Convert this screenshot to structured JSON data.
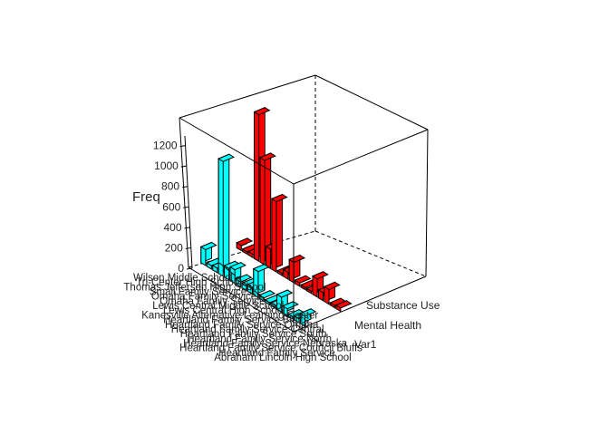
{
  "chart_data": {
    "type": "bar3d",
    "ylabel": "Freq",
    "y_ticks": [
      0,
      200,
      400,
      600,
      800,
      1000,
      1200
    ],
    "ylim": [
      0,
      1300
    ],
    "colors": {
      "Mental Health": "#00FFFF",
      "Substance Use": "#FF0000"
    },
    "var_labels": [
      "Substance Use",
      "Mental Health",
      "Var1"
    ],
    "categories": [
      "Abraham Lincoln High School",
      "Heartland Family Service",
      "Heartland Family Service Council Bluffs",
      "Heartland Family Service Nebraska",
      "Heartland Family Service North",
      "Heartland Family Service South",
      "Heartland Family Service Central",
      "Heartland Family Service Omaha",
      "Heartland Family Service Bluffs",
      "Kanesville Alternative Learning Center",
      "Lewis Central High School",
      "Lewis Central Middle School",
      "Omaha Family Service",
      "Omaha Family Services",
      "Small Family Services",
      "Thomas Jefferson High School",
      "Tri-Center High School",
      "Wilson Middle School"
    ],
    "series": [
      {
        "name": "Mental Health",
        "values": [
          140,
          30,
          40,
          1010,
          100,
          120,
          45,
          40,
          60,
          230,
          30,
          20,
          25,
          130,
          60,
          20,
          35,
          90
        ]
      },
      {
        "name": "Substance Use",
        "values": [
          45,
          20,
          30,
          1290,
          920,
          170,
          620,
          20,
          60,
          180,
          30,
          20,
          20,
          160,
          70,
          130,
          20,
          30
        ]
      }
    ]
  }
}
